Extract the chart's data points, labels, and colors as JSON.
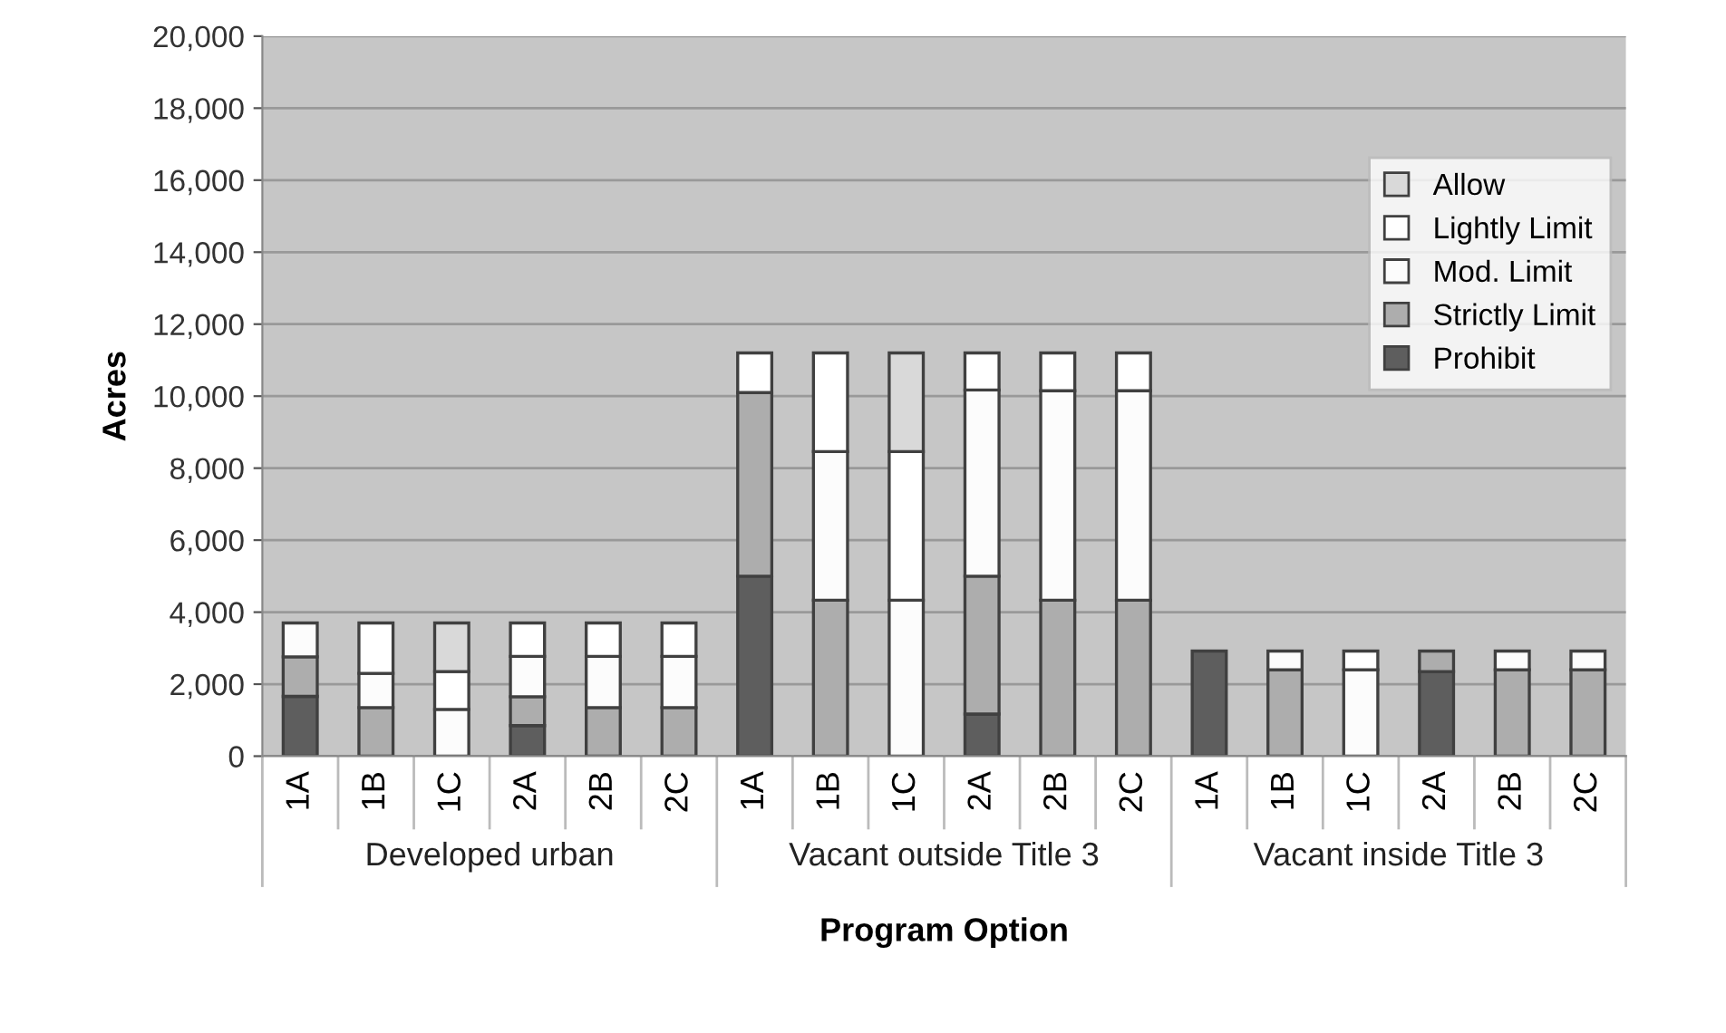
{
  "chart_data": {
    "type": "bar",
    "stacked": true,
    "xlabel": "Program Option",
    "ylabel": "Acres",
    "categories": [
      "1A",
      "1B",
      "1C",
      "2A",
      "2B",
      "2C",
      "1A",
      "1B",
      "1C",
      "2A",
      "2B",
      "2C",
      "1A",
      "1B",
      "1C",
      "2A",
      "2B",
      "2C"
    ],
    "annotations": [
      "Developed urban",
      "Vacant outside Title 3",
      "Vacant inside Title 3"
    ],
    "series": [
      {
        "name": "Prohibit",
        "color": "#5e5e5e",
        "values": [
          1660,
          0,
          0,
          850,
          0,
          0,
          5000,
          0,
          0,
          1170,
          0,
          0,
          2920,
          0,
          0,
          2350,
          0,
          0
        ]
      },
      {
        "name": "Strictly Limit",
        "color": "#adadad",
        "values": [
          1100,
          1350,
          0,
          800,
          1350,
          1350,
          5100,
          4330,
          0,
          3830,
          4330,
          4330,
          0,
          2400,
          0,
          570,
          2400,
          2400
        ]
      },
      {
        "name": "Mod. Limit",
        "color": "#fcfcfc",
        "values": [
          940,
          950,
          1300,
          1120,
          1420,
          1420,
          0,
          4130,
          4330,
          5170,
          5820,
          5820,
          0,
          520,
          2400,
          0,
          520,
          520
        ]
      },
      {
        "name": "Lightly Limit",
        "color": "#ffffff",
        "values": [
          0,
          1400,
          1050,
          930,
          930,
          930,
          1100,
          2740,
          4130,
          1030,
          1050,
          1050,
          0,
          0,
          520,
          0,
          0,
          0
        ]
      },
      {
        "name": "Allow",
        "color": "#d9d9d9",
        "values": [
          0,
          0,
          1350,
          0,
          0,
          0,
          0,
          0,
          2740,
          0,
          0,
          0,
          0,
          0,
          0,
          0,
          0,
          0
        ]
      }
    ],
    "ylim": [
      0,
      20000
    ],
    "yticks": [
      {
        "value": 0,
        "label": "0"
      },
      {
        "value": 2000,
        "label": "2,000"
      },
      {
        "value": 4000,
        "label": "4,000"
      },
      {
        "value": 6000,
        "label": "6,000"
      },
      {
        "value": 8000,
        "label": "8,000"
      },
      {
        "value": 10000,
        "label": "10,000"
      },
      {
        "value": 12000,
        "label": "12,000"
      },
      {
        "value": 14000,
        "label": "14,000"
      },
      {
        "value": 16000,
        "label": "16,000"
      },
      {
        "value": 18000,
        "label": "18,000"
      },
      {
        "value": 20000,
        "label": "20,000"
      }
    ],
    "grid": "y",
    "legend": "right"
  }
}
